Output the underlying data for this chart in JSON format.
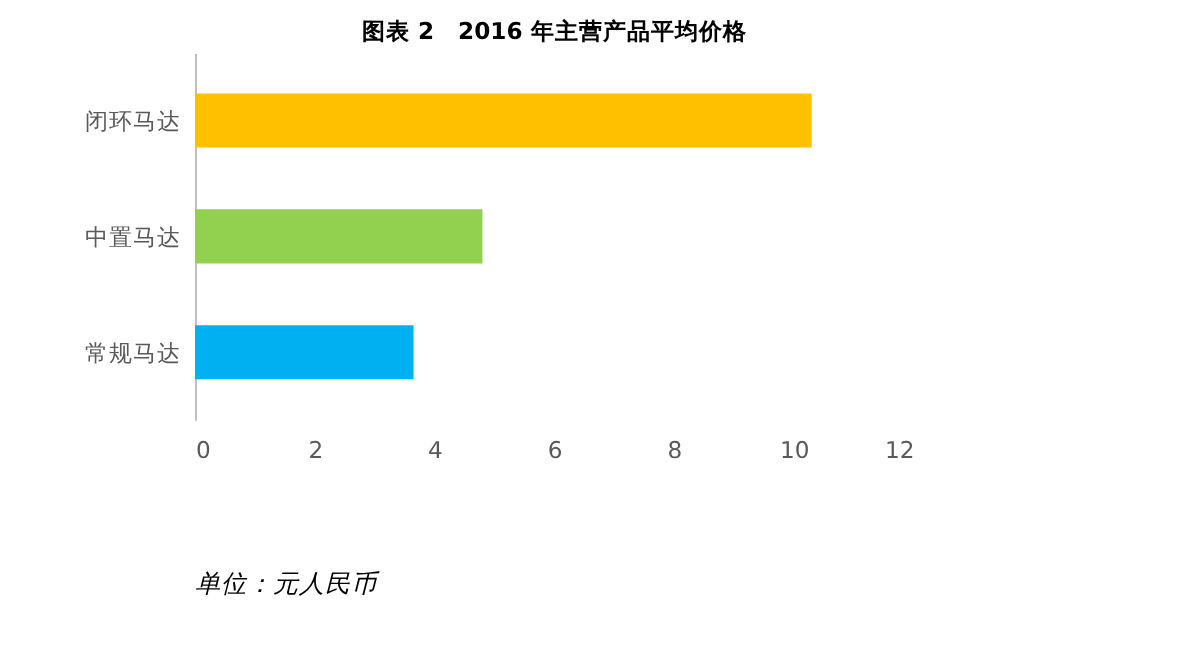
{
  "chart_data": {
    "type": "bar",
    "orientation": "horizontal",
    "title": "图表 2　2016 年主营产品平均价格",
    "categories": [
      "闭环马达",
      "中置马达",
      "常规马达"
    ],
    "values": [
      10.3,
      4.8,
      3.65
    ],
    "colors": [
      "#ffc000",
      "#92d050",
      "#00b0f0"
    ],
    "xlim": [
      0,
      12
    ],
    "xticks": [
      0,
      2,
      4,
      6,
      8,
      10,
      12
    ],
    "grid": false,
    "annotations": [
      "单位：元人民币"
    ]
  }
}
